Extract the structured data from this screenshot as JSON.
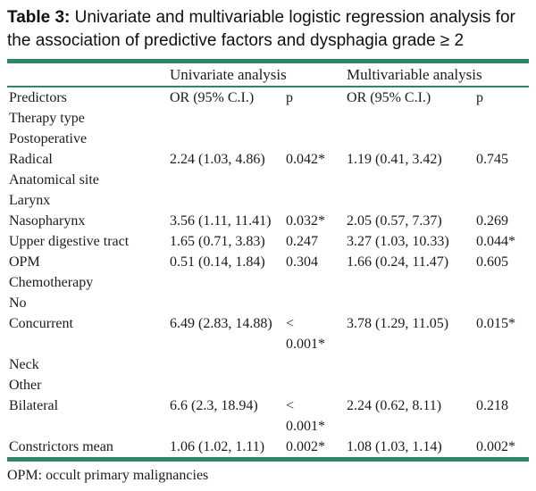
{
  "title": {
    "label": "Table 3:",
    "text": " Univariate and multivariable logistic regression analysis for the association of predictive factors and dysphagia grade ≥ 2"
  },
  "accent_color": "#2e8568",
  "table": {
    "group_headers": {
      "univariate": "Univariate analysis",
      "multivariable": "Multivariable analysis"
    },
    "columns": [
      "Predictors",
      "OR (95% C.I.)",
      "p",
      "OR (95% C.I.)",
      "p"
    ],
    "rows": [
      {
        "label": "Therapy type",
        "cells": [
          "",
          "",
          "",
          ""
        ]
      },
      {
        "label": "Postoperative",
        "cells": [
          "",
          "",
          "",
          ""
        ]
      },
      {
        "label": "Radical",
        "cells": [
          "2.24 (1.03, 4.86)",
          "0.042*",
          "1.19 (0.41, 3.42)",
          "0.745"
        ]
      },
      {
        "label": "Anatomical site",
        "cells": [
          "",
          "",
          "",
          ""
        ]
      },
      {
        "label": "Larynx",
        "cells": [
          "",
          "",
          "",
          ""
        ]
      },
      {
        "label": "Nasopharynx",
        "cells": [
          "3.56 (1.11, 11.41)",
          "0.032*",
          "2.05 (0.57, 7.37)",
          "0.269"
        ]
      },
      {
        "label": "Upper digestive tract",
        "cells": [
          "1.65 (0.71, 3.83)",
          "0.247",
          "3.27 (1.03, 10.33)",
          "0.044*"
        ]
      },
      {
        "label": "OPM",
        "cells": [
          "0.51 (0.14, 1.84)",
          "0.304",
          "1.66 (0.24, 11.47)",
          "0.605"
        ]
      },
      {
        "label": "Chemotherapy",
        "cells": [
          "",
          "",
          "",
          ""
        ]
      },
      {
        "label": "No",
        "cells": [
          "",
          "",
          "",
          ""
        ]
      },
      {
        "label": "Concurrent",
        "cells": [
          "6.49 (2.83, 14.88)",
          "<\n0.001*",
          "3.78 (1.29, 11.05)",
          "0.015*"
        ]
      },
      {
        "label": "Neck",
        "cells": [
          "",
          "",
          "",
          ""
        ]
      },
      {
        "label": "Other",
        "cells": [
          "",
          "",
          "",
          ""
        ]
      },
      {
        "label": "Bilateral",
        "cells": [
          "6.6 (2.3, 18.94)",
          "<\n0.001*",
          "2.24 (0.62, 8.11)",
          "0.218"
        ]
      },
      {
        "label": "Constrictors mean",
        "cells": [
          "1.06 (1.02, 1.11)",
          "0.002*",
          "1.08 (1.03, 1.14)",
          "0.002*"
        ]
      }
    ],
    "footnote": "OPM: occult primary malignancies"
  }
}
